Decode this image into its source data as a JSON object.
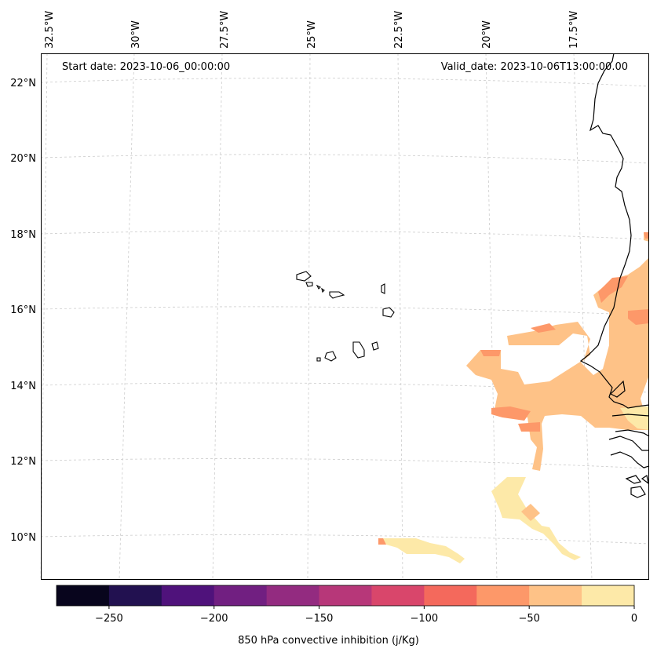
{
  "map": {
    "start_date_text": "Start date: 2023-10-06_00:00:00",
    "valid_date_text": "Valid_date: 2023-10-06T13:00:00.00",
    "lon_labels": [
      "32.5°W",
      "30°W",
      "27.5°W",
      "25°W",
      "22.5°W",
      "20°W",
      "17.5°W"
    ],
    "lat_labels": [
      "22°N",
      "20°N",
      "18°N",
      "16°N",
      "14°N",
      "12°N",
      "10°N"
    ],
    "field_colors": {
      "c_m100_m75": "#f4695c",
      "c_m75_m50": "#fd9869",
      "c_m50_m25": "#fec287",
      "c_m25_0": "#fde9a8"
    }
  },
  "colorbar": {
    "title": "850 hPa convective inhibition (j/Kg)",
    "tick_labels": [
      "−250",
      "−200",
      "−150",
      "−100",
      "−50",
      "0"
    ],
    "tick_values": [
      -250,
      -200,
      -150,
      -100,
      -50,
      0
    ],
    "range": [
      -275,
      0
    ],
    "bin_colors": [
      "#08051d",
      "#221150",
      "#4f127b",
      "#711f81",
      "#932b80",
      "#b73779",
      "#d9466b",
      "#f4695c",
      "#fd9869",
      "#fec287",
      "#fde9a8"
    ]
  }
}
